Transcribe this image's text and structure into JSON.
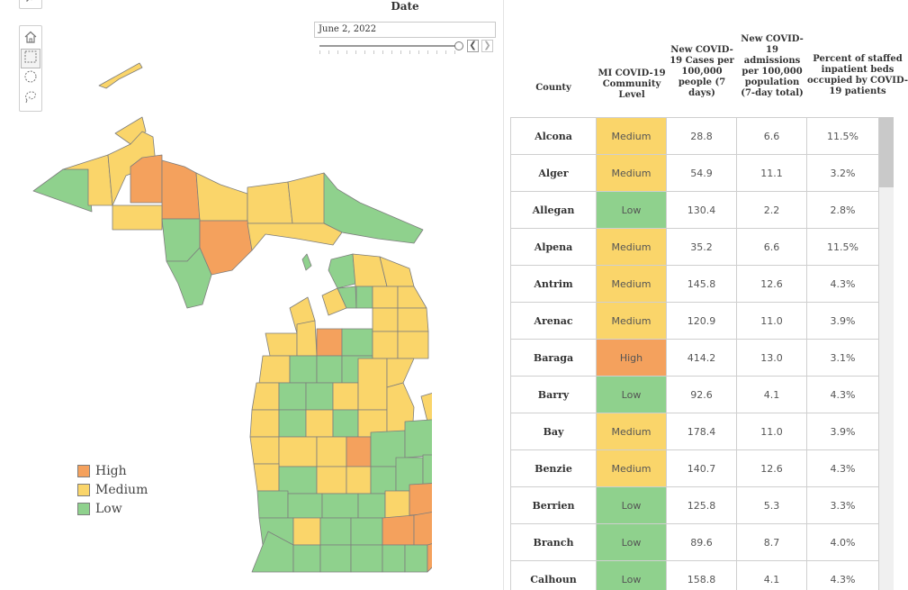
{
  "toolbar": {
    "icons": [
      "search-icon",
      "home-icon",
      "rectangle-select-icon",
      "radial-select-icon",
      "lasso-select-icon"
    ]
  },
  "date_filter": {
    "title": "Date",
    "value": "June 2, 2022"
  },
  "colors": {
    "High": "#f4a15d",
    "Medium": "#fad56a",
    "Low": "#8fd18d",
    "border": "#7d7d7d"
  },
  "legend": [
    {
      "label": "High",
      "level": "High"
    },
    {
      "label": "Medium",
      "level": "Medium"
    },
    {
      "label": "Low",
      "level": "Low"
    }
  ],
  "table": {
    "headers": {
      "county": "County",
      "level": "MI COVID-19 Community Level",
      "cases": "New COVID-19 Cases per 100,000 people (7 days)",
      "admissions": "New COVID-19 admissions per 100,000 population (7-day total)",
      "beds": "Percent of staffed inpatient beds occupied by COVID-19 patients"
    },
    "rows": [
      {
        "county": "Alcona",
        "level": "Medium",
        "cases": "28.8",
        "admissions": "6.6",
        "beds": "11.5%"
      },
      {
        "county": "Alger",
        "level": "Medium",
        "cases": "54.9",
        "admissions": "11.1",
        "beds": "3.2%"
      },
      {
        "county": "Allegan",
        "level": "Low",
        "cases": "130.4",
        "admissions": "2.2",
        "beds": "2.8%"
      },
      {
        "county": "Alpena",
        "level": "Medium",
        "cases": "35.2",
        "admissions": "6.6",
        "beds": "11.5%"
      },
      {
        "county": "Antrim",
        "level": "Medium",
        "cases": "145.8",
        "admissions": "12.6",
        "beds": "4.3%"
      },
      {
        "county": "Arenac",
        "level": "Medium",
        "cases": "120.9",
        "admissions": "11.0",
        "beds": "3.9%"
      },
      {
        "county": "Baraga",
        "level": "High",
        "cases": "414.2",
        "admissions": "13.0",
        "beds": "3.1%"
      },
      {
        "county": "Barry",
        "level": "Low",
        "cases": "92.6",
        "admissions": "4.1",
        "beds": "4.3%"
      },
      {
        "county": "Bay",
        "level": "Medium",
        "cases": "178.4",
        "admissions": "11.0",
        "beds": "3.9%"
      },
      {
        "county": "Benzie",
        "level": "Medium",
        "cases": "140.7",
        "admissions": "12.6",
        "beds": "4.3%"
      },
      {
        "county": "Berrien",
        "level": "Low",
        "cases": "125.8",
        "admissions": "5.3",
        "beds": "3.3%"
      },
      {
        "county": "Branch",
        "level": "Low",
        "cases": "89.6",
        "admissions": "8.7",
        "beds": "4.0%"
      },
      {
        "county": "Calhoun",
        "level": "Low",
        "cases": "158.8",
        "admissions": "4.1",
        "beds": "4.3%"
      }
    ]
  }
}
